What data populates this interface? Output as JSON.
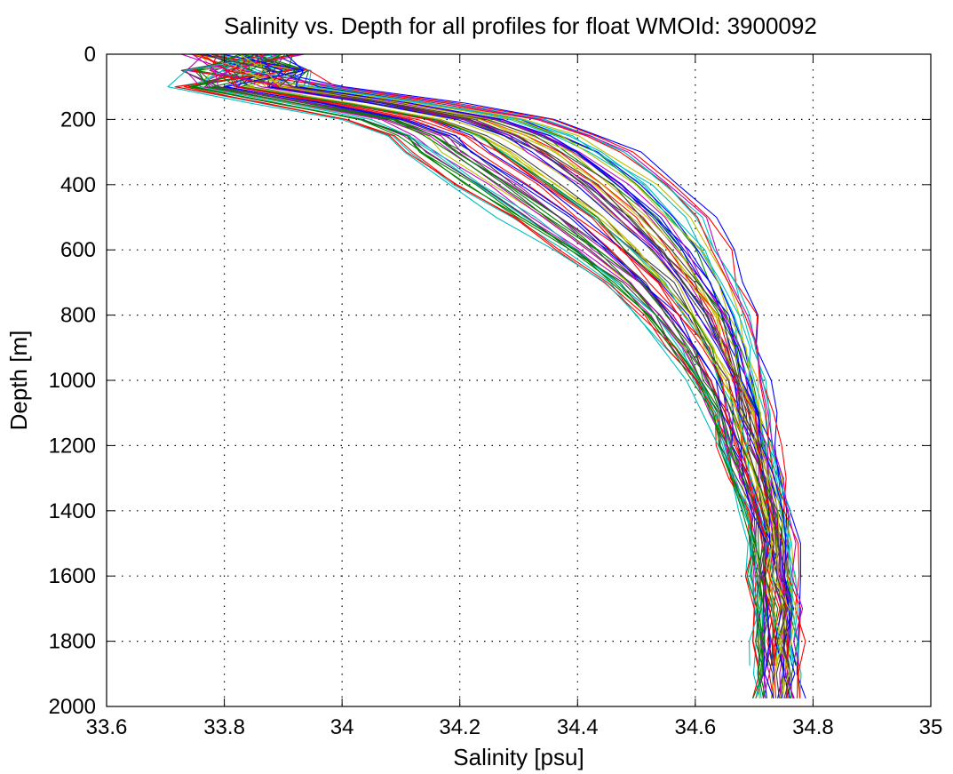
{
  "chart_data": {
    "type": "line",
    "title": "Salinity vs. Depth for all profiles for float WMOId: 3900092",
    "xlabel": "Salinity [psu]",
    "ylabel": "Depth [m]",
    "xlim": [
      33.6,
      35
    ],
    "ylim": [
      0,
      2000
    ],
    "y_reversed": true,
    "grid": true,
    "legend": "none",
    "x_ticks": [
      "33.6",
      "33.8",
      "34",
      "34.2",
      "34.4",
      "34.6",
      "34.8",
      "35"
    ],
    "y_ticks": [
      "0",
      "200",
      "400",
      "600",
      "800",
      "1000",
      "1200",
      "1400",
      "1600",
      "1800",
      "2000"
    ],
    "series_colors": [
      "#0000ff",
      "#008000",
      "#ff0000",
      "#00bfbf",
      "#bf00bf",
      "#bfbf00",
      "#404040"
    ],
    "depth_levels": [
      0,
      50,
      100,
      150,
      200,
      250,
      300,
      400,
      500,
      600,
      700,
      800,
      900,
      1000,
      1100,
      1200,
      1300,
      1400,
      1500,
      1600,
      1700,
      1800,
      1900,
      1975
    ],
    "envelope": {
      "fresh": [
        33.72,
        33.72,
        33.71,
        33.85,
        34.0,
        34.07,
        34.1,
        34.18,
        34.27,
        34.36,
        34.44,
        34.5,
        34.55,
        34.59,
        34.62,
        34.64,
        34.66,
        34.68,
        34.69,
        34.69,
        34.7,
        34.7,
        34.7,
        34.7
      ],
      "salty": [
        33.95,
        33.95,
        34.0,
        34.2,
        34.36,
        34.44,
        34.5,
        34.58,
        34.63,
        34.66,
        34.68,
        34.7,
        34.71,
        34.72,
        34.73,
        34.74,
        34.75,
        34.76,
        34.77,
        34.77,
        34.78,
        34.78,
        34.78,
        34.78
      ]
    },
    "profile_count": 70
  }
}
